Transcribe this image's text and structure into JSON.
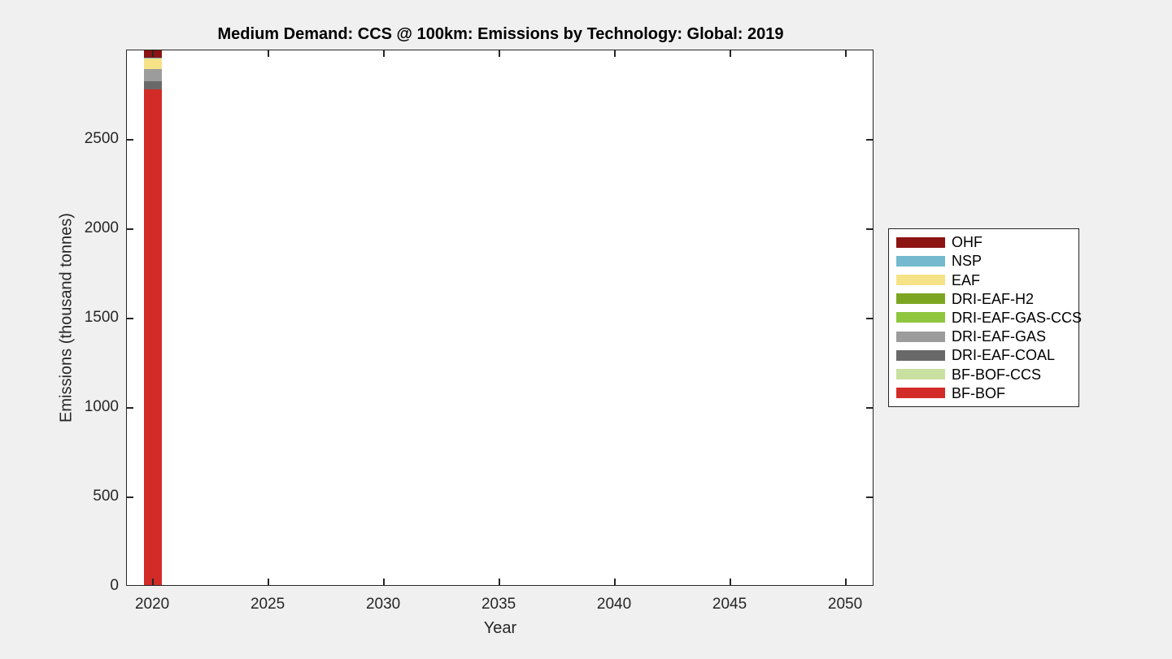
{
  "figure": {
    "background_color": "#F0F0F0",
    "plot_background_color": "#FFFFFF",
    "axis_color": "#262626"
  },
  "chart_data": {
    "type": "bar",
    "stacked": true,
    "title": "Medium Demand: CCS @ 100km: Emissions by Technology: Global: 2019",
    "xlabel": "Year",
    "ylabel": "Emissions (thousand tonnes)",
    "xlim": [
      2018.87,
      2051.23
    ],
    "ylim": [
      0,
      3000
    ],
    "xticks": [
      2020,
      2025,
      2030,
      2035,
      2040,
      2045,
      2050
    ],
    "yticks": [
      0,
      500,
      1000,
      1500,
      2000,
      2500
    ],
    "grid": false,
    "bar_width_years": 0.8,
    "x": [
      2020
    ],
    "series_bottom_to_top": [
      {
        "name": "BF-BOF",
        "color": "#D32B27",
        "values": [
          2775
        ]
      },
      {
        "name": "BF-BOF-CCS",
        "color": "#C9E0A0",
        "values": [
          0
        ]
      },
      {
        "name": "DRI-EAF-COAL",
        "color": "#696969",
        "values": [
          45
        ]
      },
      {
        "name": "DRI-EAF-GAS",
        "color": "#9C9C9C",
        "values": [
          68
        ]
      },
      {
        "name": "DRI-EAF-GAS-CCS",
        "color": "#8FC63E",
        "values": [
          0
        ]
      },
      {
        "name": "DRI-EAF-H2",
        "color": "#7CA622",
        "values": [
          0
        ]
      },
      {
        "name": "EAF",
        "color": "#F6E287",
        "values": [
          58
        ]
      },
      {
        "name": "NSP",
        "color": "#74B9CE",
        "values": [
          5
        ]
      },
      {
        "name": "OHF",
        "color": "#8C1413",
        "values": [
          60
        ]
      }
    ],
    "legend": {
      "position": "right-outside",
      "entries_top_to_bottom": [
        "OHF",
        "NSP",
        "EAF",
        "DRI-EAF-H2",
        "DRI-EAF-GAS-CCS",
        "DRI-EAF-GAS",
        "DRI-EAF-COAL",
        "BF-BOF-CCS",
        "BF-BOF"
      ]
    },
    "notes": "Single stacked bar at x=2020; stack total ~3011 exceeds ylim so top (OHF) segment is clipped at axis top"
  }
}
